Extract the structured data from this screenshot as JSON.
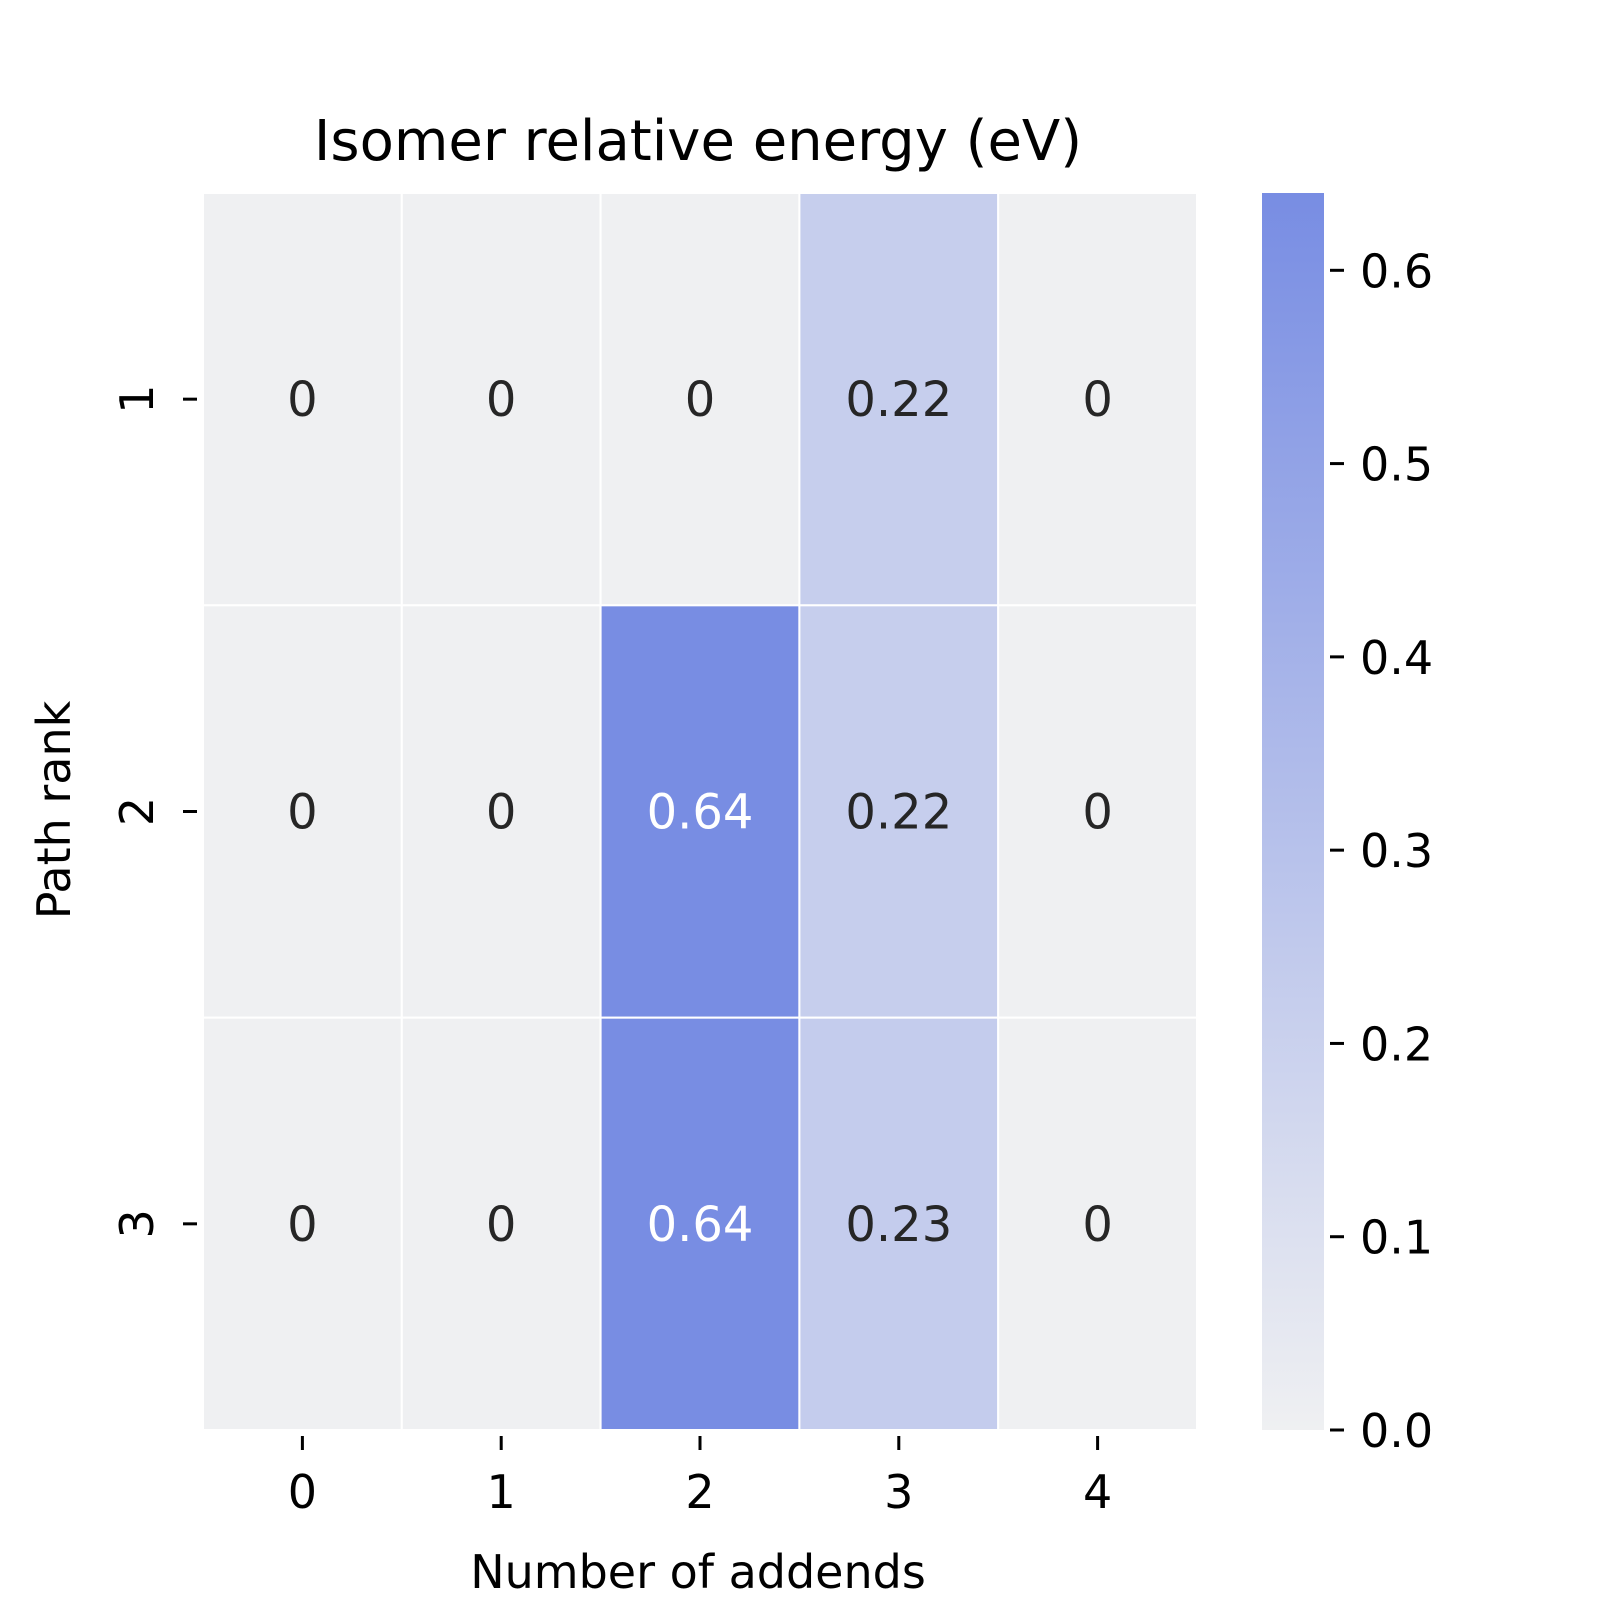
{
  "chart_data": {
    "type": "heatmap",
    "title": "Isomer relative energy (eV)",
    "xlabel": "Number of addends",
    "ylabel": "Path rank",
    "x_categories": [
      "0",
      "1",
      "2",
      "3",
      "4"
    ],
    "y_categories": [
      "1",
      "2",
      "3"
    ],
    "values": [
      [
        0,
        0,
        0,
        0.22,
        0
      ],
      [
        0,
        0,
        0.64,
        0.22,
        0
      ],
      [
        0,
        0,
        0.64,
        0.23,
        0
      ]
    ],
    "cell_labels": [
      [
        "0",
        "0",
        "0",
        "0.22",
        "0"
      ],
      [
        "0",
        "0",
        "0.64",
        "0.22",
        "0"
      ],
      [
        "0",
        "0",
        "0.64",
        "0.23",
        "0"
      ]
    ],
    "colorbar": {
      "range": [
        0,
        0.64
      ],
      "ticks": [
        "0.0",
        "0.1",
        "0.2",
        "0.3",
        "0.4",
        "0.5",
        "0.6"
      ],
      "tick_values": [
        0,
        0.1,
        0.2,
        0.3,
        0.4,
        0.5,
        0.6
      ],
      "low_color": "#eff0f2",
      "high_color": "#788de3"
    },
    "grid": "white cell borders",
    "label_text_dark": "#262626",
    "label_text_light": "#ffffff"
  }
}
